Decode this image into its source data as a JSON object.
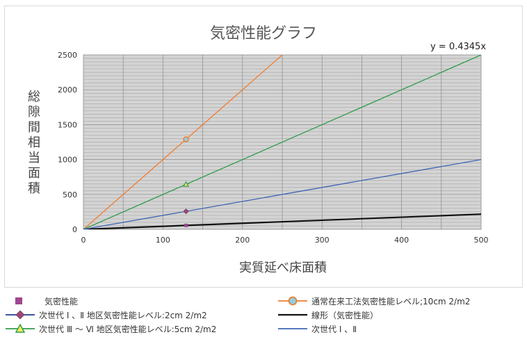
{
  "chart_data": {
    "type": "scatter",
    "title": "気密性能グラフ",
    "xlabel": "実質延べ床面積",
    "ylabel": "総隙間相当面積",
    "xlim": [
      0,
      500
    ],
    "ylim": [
      0,
      2500
    ],
    "x_ticks": [
      "0",
      "100",
      "200",
      "300",
      "400",
      "500"
    ],
    "y_ticks": [
      "0",
      "500",
      "1000",
      "1500",
      "2000",
      "2500"
    ],
    "grid": true,
    "legend_position": "bottom",
    "annotation": "y = 0.4345x",
    "series": [
      {
        "name": "気密性能",
        "kind": "marker",
        "marker": "square",
        "color": "#a0468f",
        "points": [
          [
            129,
            56
          ]
        ]
      },
      {
        "name": "通常在来工法気密性能レベル;10cm 2/m2",
        "kind": "line",
        "marker": "circle",
        "color": "#f07c2e",
        "slope": 10,
        "points": [
          [
            0,
            0
          ],
          [
            129,
            1290
          ],
          [
            250,
            2500
          ]
        ]
      },
      {
        "name": "次世代 Ⅰ 、Ⅱ 地区気密性能レベル:2cm 2/m2",
        "kind": "marker",
        "marker": "diamond",
        "color": "#9e4876",
        "points": [
          [
            129,
            258
          ]
        ]
      },
      {
        "name": "線形（気密性能）",
        "kind": "line",
        "marker": "none",
        "color": "#111111",
        "slope": 0.4345,
        "points": [
          [
            0,
            0
          ],
          [
            500,
            217.25
          ]
        ]
      },
      {
        "name": "次世代 Ⅲ 〜 Ⅵ 地区気密性能レベル:5cm 2/m2",
        "kind": "line",
        "marker": "triangle",
        "color": "#2e9c4a",
        "slope": 5,
        "points": [
          [
            0,
            0
          ],
          [
            129,
            645
          ],
          [
            500,
            2500
          ]
        ]
      },
      {
        "name": "次世代 Ⅰ 、Ⅱ",
        "kind": "line",
        "marker": "none",
        "color": "#3d64b5",
        "slope": 2,
        "points": [
          [
            0,
            0
          ],
          [
            500,
            1000
          ]
        ]
      }
    ]
  }
}
